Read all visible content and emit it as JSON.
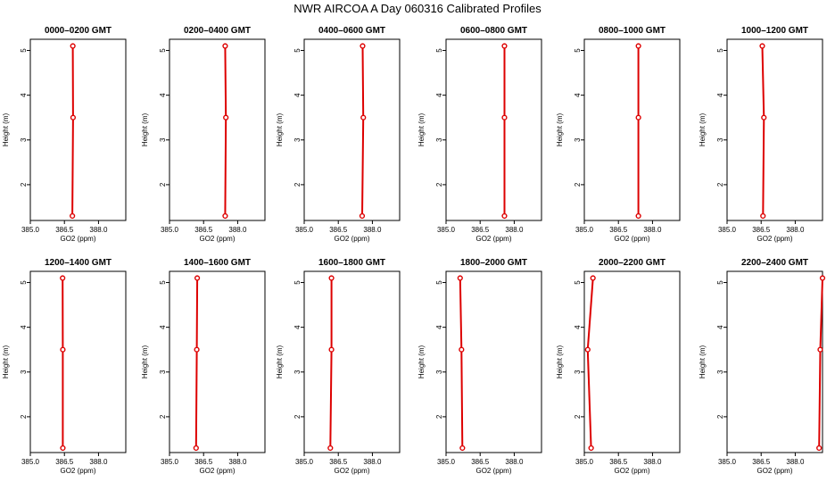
{
  "chart_data": {
    "type": "line",
    "title": "NWR AIRCOA A  Day 060316  Calibrated Profiles",
    "xlabel": "GO2 (ppm)",
    "ylabel": "Height (m)",
    "xlim": [
      385.0,
      389.2
    ],
    "ylim": [
      1.2,
      5.25
    ],
    "xticks": [
      385.0,
      386.5,
      388.0
    ],
    "xtick_labels": [
      "385.0",
      "386.5",
      "388.0"
    ],
    "yticks": [
      2,
      3,
      4,
      5
    ],
    "ytick_labels": [
      "2",
      "3",
      "4",
      "5"
    ],
    "color": "#dd0000",
    "heights": [
      1.3,
      3.5,
      5.1
    ],
    "panels": [
      {
        "title": "0000–0200 GMT",
        "values": [
          386.85,
          386.88,
          386.87
        ]
      },
      {
        "title": "0200–0400 GMT",
        "values": [
          387.45,
          387.48,
          387.45
        ]
      },
      {
        "title": "0400–0600 GMT",
        "values": [
          387.55,
          387.6,
          387.57
        ]
      },
      {
        "title": "0600–0800 GMT",
        "values": [
          387.57,
          387.57,
          387.57
        ]
      },
      {
        "title": "0800–1000 GMT",
        "values": [
          387.38,
          387.38,
          387.38
        ]
      },
      {
        "title": "1000–1200 GMT",
        "values": [
          386.58,
          386.62,
          386.55
        ]
      },
      {
        "title": "1200–1400 GMT",
        "values": [
          386.43,
          386.43,
          386.42
        ]
      },
      {
        "title": "1400–1600 GMT",
        "values": [
          386.17,
          386.2,
          386.22
        ]
      },
      {
        "title": "1600–1800 GMT",
        "values": [
          386.15,
          386.2,
          386.2
        ]
      },
      {
        "title": "1800–2000 GMT",
        "values": [
          385.72,
          385.68,
          385.62
        ]
      },
      {
        "title": "2000–2200 GMT",
        "values": [
          385.3,
          385.15,
          385.38
        ]
      },
      {
        "title": "2200–2400 GMT",
        "values": [
          389.05,
          389.1,
          389.2
        ]
      }
    ]
  }
}
